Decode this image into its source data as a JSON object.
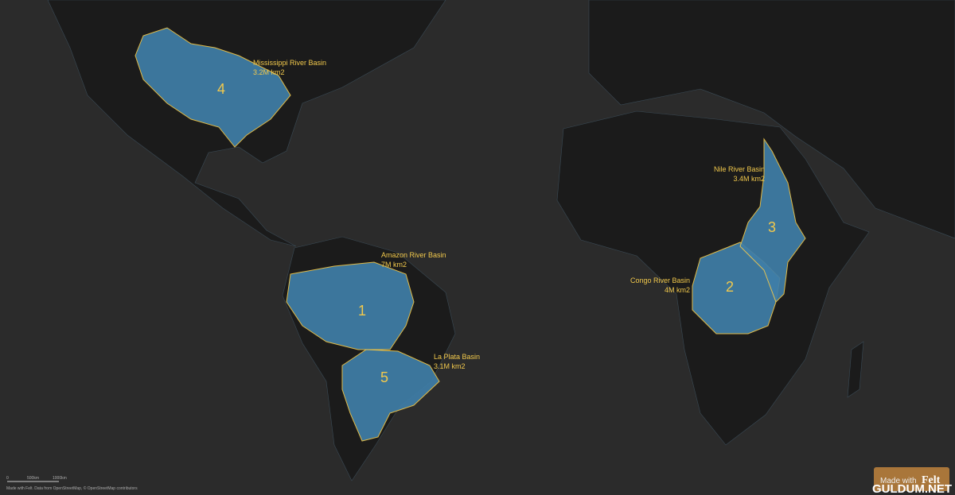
{
  "basins": [
    {
      "rank": "1",
      "name": "Amazon River Basin",
      "area": "7M km2"
    },
    {
      "rank": "2",
      "name": "Congo River Basin",
      "area": "4M km2"
    },
    {
      "rank": "3",
      "name": "Nile River Basin",
      "area": "3.4M km2"
    },
    {
      "rank": "4",
      "name": "Mississippi River Basin",
      "area": "3.2M km2"
    },
    {
      "rank": "5",
      "name": "La Plata Basin",
      "area": "3.1M km2"
    }
  ],
  "scale_bar": {
    "labels": [
      "0",
      "500km",
      "1000km"
    ]
  },
  "attribution": "Made with Felt. Data from OpenStreetMap, © OpenStreetMap contributors",
  "logo": {
    "prefix": "Made with",
    "brand": "Felt"
  },
  "watermark": "GULDUM.NET"
}
